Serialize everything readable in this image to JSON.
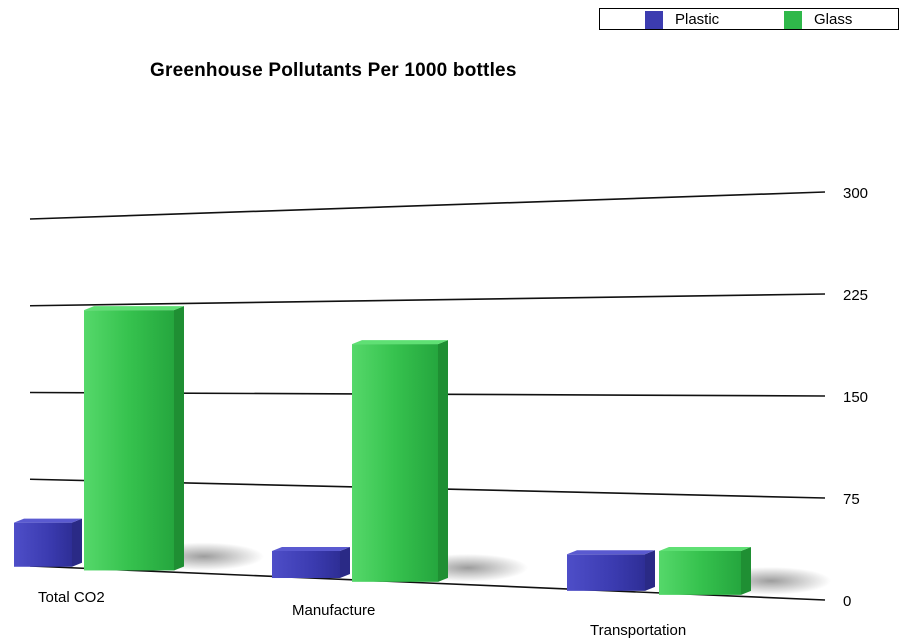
{
  "chart_data": {
    "type": "bar",
    "title": "Greenhouse Pollutants Per 1000 bottles",
    "categories": [
      "Total CO2",
      "Manufacture",
      "Transportation"
    ],
    "series": [
      {
        "name": "Plastic",
        "values": [
          38,
          22,
          28
        ],
        "color": "#3c3cb0"
      },
      {
        "name": "Glass",
        "values": [
          220,
          190,
          33
        ],
        "color": "#2fb84a"
      }
    ],
    "yticks": [
      0,
      75,
      150,
      225,
      300
    ],
    "ylim": [
      0,
      300
    ],
    "grid": true,
    "legend_position": "top-right"
  }
}
